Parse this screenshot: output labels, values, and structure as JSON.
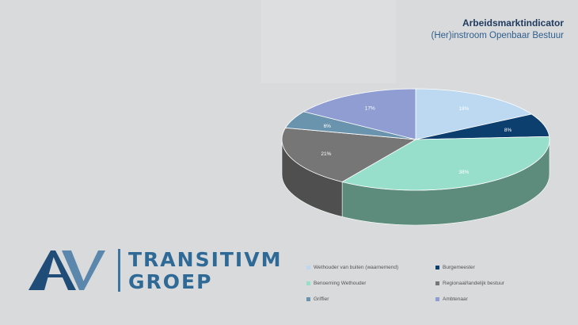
{
  "header": {
    "title": "Arbeidsmarktindicator",
    "subtitle": "(Her)instroom Openbaar Bestuur"
  },
  "logo": {
    "text_line1": "TRANSITIVM",
    "text_line2": "GROEP"
  },
  "chart_data": {
    "type": "pie",
    "labels": [
      "Wethouder van buiten (waarnemend)",
      "Burgemeester",
      "Benoeming Wethouder",
      "Regionaal/landelijk bestuur",
      "Griffier",
      "Ambtenaar"
    ],
    "values": [
      18,
      8,
      38,
      21,
      6,
      17
    ],
    "data_labels": [
      "18%",
      "8%",
      "38%",
      "21%",
      "6%",
      "17%"
    ],
    "colors": [
      "#bcd9f1",
      "#0d3f6e",
      "#97dfcb",
      "#767676",
      "#6a93ad",
      "#8f9dd3"
    ],
    "side_colors": [
      "#8aa6bb",
      "#0a2c4d",
      "#5d8c7d",
      "#4f4f4f",
      "#4a6b80",
      "#6673a0"
    ],
    "legend_position": "bottom"
  }
}
